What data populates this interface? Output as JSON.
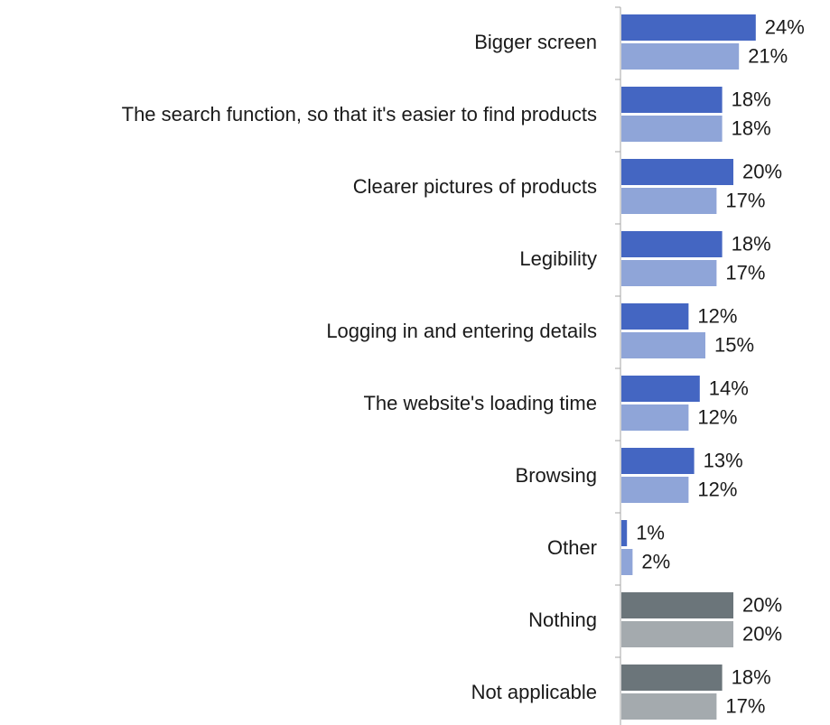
{
  "chart_data": {
    "type": "bar",
    "orientation": "horizontal",
    "categories": [
      "Bigger screen",
      "The search function, so that it's easier to find products",
      "Clearer pictures of products",
      "Legibility",
      "Logging in and entering details",
      "The website's loading time",
      "Browsing",
      "Other",
      "Nothing",
      "Not applicable"
    ],
    "series": [
      {
        "values": [
          24,
          18,
          20,
          18,
          12,
          14,
          13,
          1,
          20,
          18
        ]
      },
      {
        "values": [
          21,
          18,
          17,
          17,
          15,
          12,
          12,
          2,
          20,
          17
        ]
      }
    ],
    "value_suffix": "%",
    "xlim": [
      0,
      30
    ],
    "grid": false,
    "legend": "none",
    "colors": {
      "series_1": "#4466c2",
      "series_2": "#8fa5d8",
      "series_1_neutral": "#6b757a",
      "series_2_neutral": "#a4aaae"
    },
    "neutral_categories": [
      "Nothing",
      "Not applicable"
    ]
  }
}
